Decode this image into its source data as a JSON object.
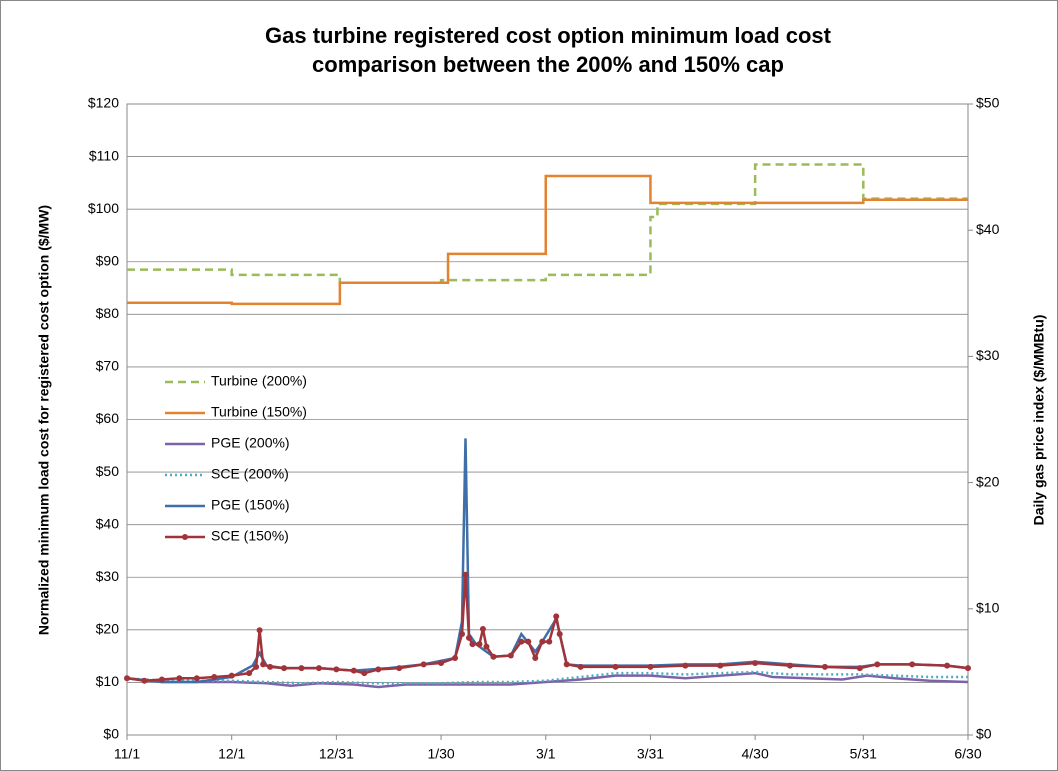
{
  "chart_data": {
    "type": "line",
    "title": [
      "Gas turbine registered cost option minimum load cost",
      "comparison between the 200% and 150% cap"
    ],
    "ylabel": "Normalized minimum load cost for registered cost option ($/MW)",
    "y2label": "Daily gas price index ($/MMBtu)",
    "xlim": [
      0,
      241
    ],
    "xticks": [
      {
        "value": 0,
        "label": "11/1"
      },
      {
        "value": 30,
        "label": "12/1"
      },
      {
        "value": 60,
        "label": "12/31"
      },
      {
        "value": 90,
        "label": "1/30"
      },
      {
        "value": 120,
        "label": "3/1"
      },
      {
        "value": 150,
        "label": "3/31"
      },
      {
        "value": 180,
        "label": "4/30"
      },
      {
        "value": 211,
        "label": "5/31"
      },
      {
        "value": 241,
        "label": "6/30"
      }
    ],
    "ylim": [
      0,
      120
    ],
    "yticks": [
      {
        "value": 0,
        "label": "$0"
      },
      {
        "value": 10,
        "label": "$10"
      },
      {
        "value": 20,
        "label": "$20"
      },
      {
        "value": 30,
        "label": "$30"
      },
      {
        "value": 40,
        "label": "$40"
      },
      {
        "value": 50,
        "label": "$50"
      },
      {
        "value": 60,
        "label": "$60"
      },
      {
        "value": 70,
        "label": "$70"
      },
      {
        "value": 80,
        "label": "$80"
      },
      {
        "value": 90,
        "label": "$90"
      },
      {
        "value": 100,
        "label": "$100"
      },
      {
        "value": 110,
        "label": "$110"
      },
      {
        "value": 120,
        "label": "$120"
      }
    ],
    "y2lim": [
      0,
      50
    ],
    "y2ticks": [
      {
        "value": 0,
        "label": "$0"
      },
      {
        "value": 10,
        "label": "$10"
      },
      {
        "value": 20,
        "label": "$20"
      },
      {
        "value": 30,
        "label": "$30"
      },
      {
        "value": 40,
        "label": "$40"
      },
      {
        "value": 50,
        "label": "$50"
      }
    ],
    "grid": true,
    "legend": "left",
    "series": [
      {
        "name": "Turbine (200%)",
        "color": "#9bbb59",
        "dash": "dashed",
        "x": [
          0,
          30,
          30,
          61,
          61,
          90,
          90,
          120,
          120,
          150,
          150,
          152,
          152,
          180,
          180,
          211,
          211,
          241
        ],
        "values": [
          88.5,
          88.5,
          87.5,
          87.5,
          86,
          86,
          86.5,
          86.5,
          87.5,
          87.5,
          98.5,
          98.5,
          101,
          101,
          108.5,
          108.5,
          102,
          102
        ]
      },
      {
        "name": "Turbine (150%)",
        "color": "#e3822f",
        "dash": "solid",
        "x": [
          0,
          30,
          30,
          61,
          61,
          92,
          92,
          120,
          120,
          150,
          150,
          211,
          211,
          241
        ],
        "values": [
          82.2,
          82.2,
          82,
          82,
          86,
          86,
          91.5,
          91.5,
          106.3,
          106.3,
          101.2,
          101.2,
          101.8,
          101.8
        ]
      },
      {
        "name": "PGE (200%)",
        "color": "#7e62a8",
        "dash": "solid",
        "axis": "y2",
        "x": [
          0,
          10,
          20,
          30,
          40,
          47,
          55,
          65,
          72,
          80,
          90,
          100,
          110,
          120,
          130,
          140,
          150,
          160,
          170,
          180,
          185,
          195,
          205,
          212,
          220,
          230,
          241
        ],
        "values": [
          4.5,
          4.2,
          4.2,
          4.2,
          4.1,
          3.9,
          4.1,
          4.0,
          3.8,
          4.0,
          4.0,
          4.0,
          4.0,
          4.2,
          4.4,
          4.7,
          4.7,
          4.5,
          4.7,
          4.9,
          4.6,
          4.5,
          4.4,
          4.7,
          4.5,
          4.3,
          4.2
        ]
      },
      {
        "name": "SCE (200%)",
        "color": "#4bacc6",
        "dash": "dotted",
        "axis": "y2",
        "x": [
          0,
          10,
          20,
          30,
          40,
          50,
          60,
          70,
          80,
          90,
          100,
          110,
          120,
          130,
          140,
          150,
          160,
          170,
          180,
          190,
          200,
          210,
          220,
          230,
          241
        ],
        "values": [
          4.5,
          4.3,
          4.3,
          4.3,
          4.2,
          4.1,
          4.2,
          4.1,
          4.1,
          4.1,
          4.2,
          4.2,
          4.3,
          4.6,
          4.9,
          4.9,
          4.8,
          4.9,
          5.0,
          4.8,
          4.8,
          4.8,
          4.7,
          4.6,
          4.6
        ]
      },
      {
        "name": "PGE (150%)",
        "color": "#3f6fa8",
        "dash": "solid",
        "axis": "y2",
        "x": [
          0,
          10,
          20,
          30,
          36,
          38,
          40,
          45,
          55,
          65,
          75,
          85,
          94,
          96,
          97,
          98,
          100,
          105,
          110,
          113,
          117,
          119,
          123,
          126,
          130,
          140,
          150,
          160,
          170,
          180,
          190,
          200,
          210,
          215,
          225,
          235,
          241
        ],
        "values": [
          4.5,
          4.2,
          4.2,
          4.6,
          5.5,
          6.5,
          5.5,
          5.3,
          5.3,
          5.1,
          5.3,
          5.6,
          6.1,
          9.0,
          23.5,
          8.0,
          7.2,
          6.2,
          6.3,
          8.0,
          6.6,
          7.4,
          9.2,
          5.6,
          5.5,
          5.5,
          5.5,
          5.6,
          5.6,
          5.8,
          5.6,
          5.4,
          5.4,
          5.6,
          5.6,
          5.5,
          5.3
        ]
      },
      {
        "name": "SCE (150%)",
        "color": "#a0343a",
        "dash": "solid",
        "axis": "y2",
        "marker": true,
        "x": [
          0,
          5,
          10,
          15,
          20,
          25,
          30,
          35,
          37,
          38,
          39,
          41,
          45,
          50,
          55,
          60,
          65,
          68,
          72,
          78,
          85,
          90,
          94,
          96,
          97,
          98,
          99,
          101,
          102,
          103,
          105,
          110,
          113,
          115,
          117,
          119,
          121,
          123,
          124,
          126,
          130,
          140,
          150,
          160,
          170,
          180,
          190,
          200,
          210,
          215,
          225,
          235,
          241
        ],
        "values": [
          4.5,
          4.3,
          4.4,
          4.5,
          4.5,
          4.6,
          4.7,
          4.9,
          5.4,
          8.3,
          5.6,
          5.4,
          5.3,
          5.3,
          5.3,
          5.2,
          5.1,
          4.9,
          5.2,
          5.3,
          5.6,
          5.7,
          6.1,
          8.0,
          12.7,
          7.7,
          7.2,
          7.2,
          8.4,
          7.0,
          6.2,
          6.3,
          7.4,
          7.4,
          6.1,
          7.4,
          7.4,
          9.4,
          8.0,
          5.6,
          5.4,
          5.4,
          5.4,
          5.5,
          5.5,
          5.7,
          5.5,
          5.4,
          5.3,
          5.6,
          5.6,
          5.5,
          5.3
        ]
      }
    ]
  }
}
